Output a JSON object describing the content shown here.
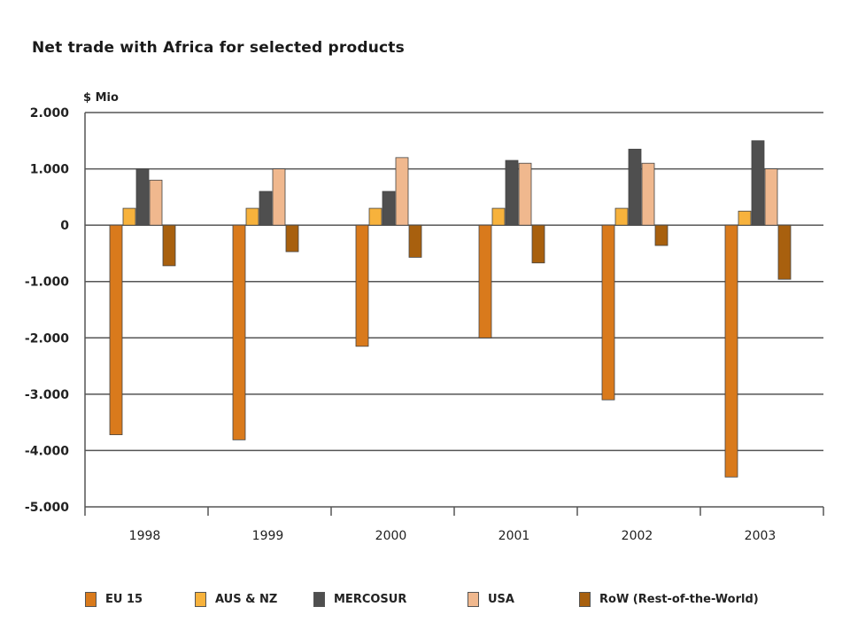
{
  "chart_data": {
    "type": "bar",
    "title": "Net trade with Africa for selected products",
    "ylabel": "$ Mio",
    "xlabel": "",
    "ylim": [
      -5000,
      2000
    ],
    "yticks": [
      2000,
      1000,
      0,
      -1000,
      -2000,
      -3000,
      -4000,
      -5000
    ],
    "ytick_labels": [
      "2.000",
      "1.000",
      "0",
      "-1.000",
      "-2.000",
      "-3.000",
      "-4.000",
      "-5.000"
    ],
    "grid": true,
    "legend_position": "bottom",
    "categories": [
      "1998",
      "1999",
      "2000",
      "2001",
      "2002",
      "2003"
    ],
    "series": [
      {
        "name": "EU 15",
        "color": "#d97a1c",
        "values": [
          -3720,
          -3810,
          -2150,
          -2000,
          -3100,
          -4470
        ]
      },
      {
        "name": "AUS & NZ",
        "color": "#f7b23c",
        "values": [
          300,
          300,
          300,
          300,
          300,
          250
        ]
      },
      {
        "name": "MERCOSUR",
        "color": "#4f4f4f",
        "values": [
          1000,
          600,
          600,
          1150,
          1350,
          1500
        ]
      },
      {
        "name": "USA",
        "color": "#f0b88e",
        "values": [
          800,
          1000,
          1200,
          1100,
          1100,
          1000
        ]
      },
      {
        "name": "RoW (Rest-of-the-World)",
        "color": "#a8600e",
        "values": [
          -720,
          -470,
          -570,
          -670,
          -360,
          -960
        ]
      }
    ]
  }
}
